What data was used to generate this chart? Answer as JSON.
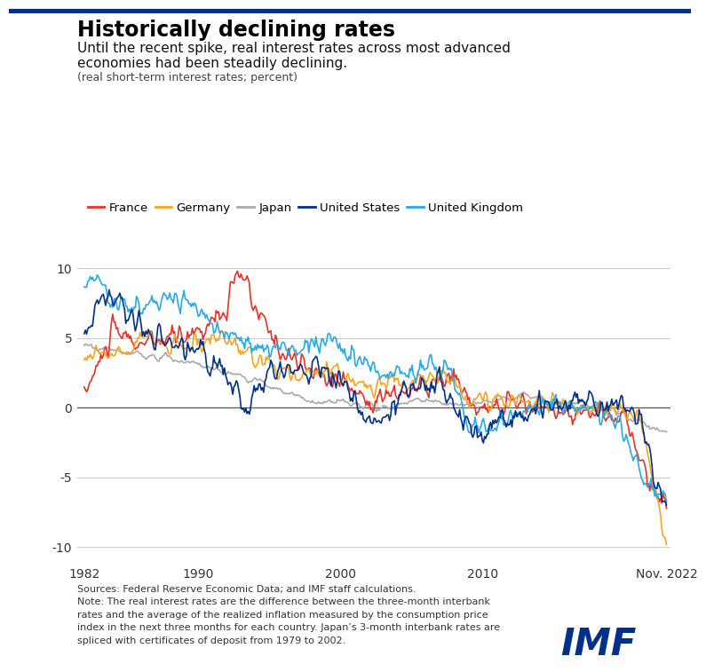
{
  "title": "Historically declining rates",
  "subtitle_line1": "Until the recent spike, real interest rates across most advanced",
  "subtitle_line2": "economies had been steadily declining.",
  "subtitle3": "(real short-term interest rates; percent)",
  "source_text": "Sources: Federal Reserve Economic Data; and IMF staff calculations.\nNote: The real interest rates are the difference between the three-month interbank\nrates and the average of the realized inflation measured by the consumption price\nindex in the next three months for each country. Japan’s 3-month interbank rates are\nspliced with certificates of deposit from 1979 to 2002.",
  "imf_color": "#003087",
  "series": {
    "France": {
      "color": "#e63329"
    },
    "Germany": {
      "color": "#f5a623"
    },
    "Japan": {
      "color": "#aaaaaa"
    },
    "United States": {
      "color": "#003087"
    },
    "United Kingdom": {
      "color": "#29abe2"
    }
  },
  "ylim": [
    -11,
    12
  ],
  "yticks": [
    -10,
    -5,
    0,
    5,
    10
  ],
  "x_start": 1981.5,
  "x_end": 2023.2,
  "xtick_labels": [
    "1982",
    "1990",
    "2000",
    "2010",
    "Nov. 2022"
  ],
  "xtick_positions": [
    1982,
    1990,
    2000,
    2010,
    2022.917
  ]
}
